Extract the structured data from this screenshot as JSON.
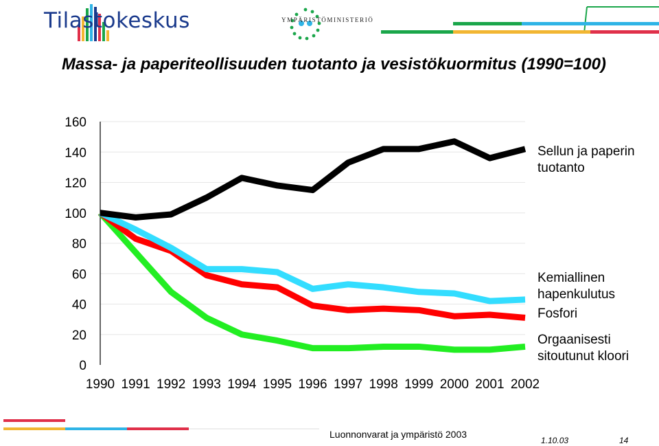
{
  "header": {
    "logo_text": "Tilastokeskus",
    "ministry_text": "YMPÄRISTÖMINISTERIÖ"
  },
  "colors": {
    "pulp": "#000000",
    "chemicals": "#33ddff",
    "phosphorus": "#ff0000",
    "aox": "#22ee22",
    "stripe_green": "#1aa64a",
    "stripe_yellow": "#f2b632",
    "stripe_blue": "#2fb4e6",
    "stripe_red": "#e0304a"
  },
  "chart_data": {
    "type": "line",
    "title": "Massa- ja paperiteollisuuden tuotanto ja vesistökuormitus (1990=100)",
    "x": [
      "1990",
      "1991",
      "1992",
      "1993",
      "1994",
      "1995",
      "1996",
      "1997",
      "1998",
      "1999",
      "2000",
      "2001",
      "2002"
    ],
    "ylim": [
      0,
      160
    ],
    "yticks": [
      "0",
      "20",
      "40",
      "60",
      "80",
      "100",
      "120",
      "140",
      "160"
    ],
    "grid": true,
    "series": [
      {
        "name": "Sellun ja paperin tuotanto",
        "label_lines": [
          "Sellun ja paperin",
          "tuotanto"
        ],
        "color": "#000000",
        "values": [
          100,
          97,
          99,
          110,
          123,
          118,
          115,
          133,
          142,
          142,
          147,
          136,
          142
        ]
      },
      {
        "name": "Kemiallinen hapenkulutus",
        "label_lines": [
          "Kemiallinen",
          "hapenkulutus"
        ],
        "color": "#33ddff",
        "values": [
          100,
          89,
          77,
          63,
          63,
          61,
          50,
          53,
          51,
          48,
          47,
          42,
          43
        ]
      },
      {
        "name": "Fosfori",
        "label_lines": [
          "Fosfori"
        ],
        "color": "#ff0000",
        "values": [
          100,
          83,
          75,
          59,
          53,
          51,
          39,
          36,
          37,
          36,
          32,
          33,
          31
        ]
      },
      {
        "name": "Orgaanisesti sitoutunut kloori",
        "label_lines": [
          "Orgaanisesti",
          "sitoutunut kloori"
        ],
        "color": "#22ee22",
        "values": [
          100,
          74,
          48,
          31,
          20,
          16,
          11,
          11,
          12,
          12,
          10,
          10,
          12
        ]
      }
    ]
  },
  "footer": {
    "source": "Luonnonvarat ja ympäristö 2003",
    "date": "1.10.03",
    "page": "14"
  }
}
